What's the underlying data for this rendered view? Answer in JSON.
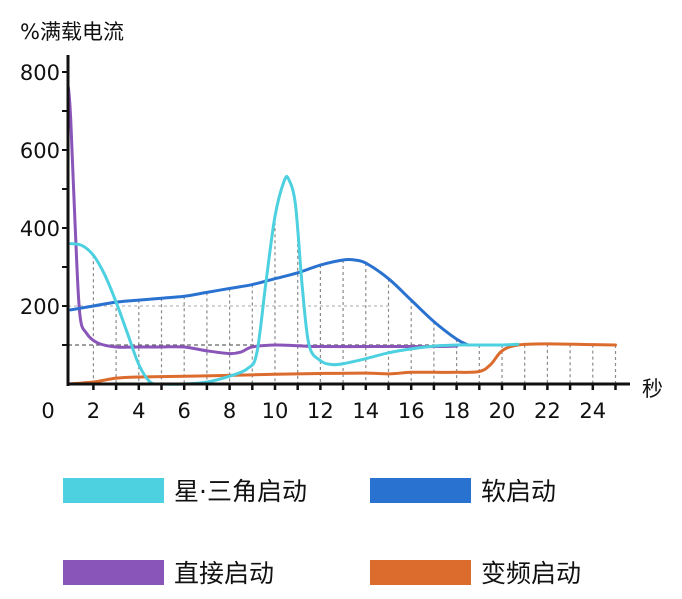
{
  "chart_data": {
    "type": "line",
    "title": "",
    "ylabel": "%满载电流",
    "xlabel": "秒",
    "xlim": [
      0,
      25
    ],
    "ylim": [
      0,
      800
    ],
    "x_ticks": [
      0,
      2,
      4,
      6,
      8,
      10,
      12,
      14,
      16,
      18,
      20,
      22,
      24
    ],
    "y_ticks": [
      200,
      400,
      600,
      800
    ],
    "grid": "dashed vertical lines at each second under curves; dashed horizontal reference at 100 and 200",
    "legend_position": "bottom",
    "series": [
      {
        "name": "星·三角启动",
        "color": "#4dd0df",
        "points": [
          [
            1,
            360
          ],
          [
            1.5,
            355
          ],
          [
            2,
            330
          ],
          [
            2.5,
            280
          ],
          [
            3,
            210
          ],
          [
            3.5,
            130
          ],
          [
            4,
            50
          ],
          [
            4.5,
            5
          ],
          [
            5,
            0
          ],
          [
            6,
            0
          ],
          [
            7,
            5
          ],
          [
            8,
            20
          ],
          [
            8.8,
            40
          ],
          [
            9.2,
            80
          ],
          [
            9.6,
            260
          ],
          [
            10,
            430
          ],
          [
            10.4,
            520
          ],
          [
            10.6,
            525
          ],
          [
            10.9,
            460
          ],
          [
            11.2,
            250
          ],
          [
            11.5,
            100
          ],
          [
            12,
            60
          ],
          [
            12.5,
            50
          ],
          [
            13,
            52
          ],
          [
            14,
            65
          ],
          [
            15,
            80
          ],
          [
            16,
            90
          ],
          [
            17,
            97
          ],
          [
            18,
            100
          ],
          [
            19,
            100
          ],
          [
            20,
            100
          ],
          [
            20.7,
            102
          ]
        ]
      },
      {
        "name": "软启动",
        "color": "#2a72d0",
        "points": [
          [
            1,
            190
          ],
          [
            2,
            200
          ],
          [
            3,
            210
          ],
          [
            4,
            215
          ],
          [
            5,
            220
          ],
          [
            6,
            225
          ],
          [
            7,
            235
          ],
          [
            8,
            245
          ],
          [
            9,
            255
          ],
          [
            10,
            270
          ],
          [
            11,
            285
          ],
          [
            12,
            305
          ],
          [
            13,
            318
          ],
          [
            13.5,
            318
          ],
          [
            14,
            310
          ],
          [
            15,
            270
          ],
          [
            16,
            215
          ],
          [
            17,
            160
          ],
          [
            18,
            115
          ],
          [
            18.5,
            100
          ]
        ]
      },
      {
        "name": "直接启动",
        "color": "#8a55b8",
        "points": [
          [
            0.9,
            760
          ],
          [
            1,
            680
          ],
          [
            1.2,
            400
          ],
          [
            1.4,
            180
          ],
          [
            1.7,
            130
          ],
          [
            2.2,
            105
          ],
          [
            3,
            95
          ],
          [
            4,
            95
          ],
          [
            5,
            95
          ],
          [
            6,
            95
          ],
          [
            7,
            85
          ],
          [
            8,
            78
          ],
          [
            8.5,
            82
          ],
          [
            9,
            95
          ],
          [
            10,
            100
          ],
          [
            11,
            98
          ],
          [
            12,
            96
          ],
          [
            14,
            96
          ],
          [
            16,
            96
          ],
          [
            17,
            96
          ],
          [
            18,
            97
          ]
        ]
      },
      {
        "name": "变频启动",
        "color": "#dc6b2e",
        "points": [
          [
            0.9,
            0
          ],
          [
            2,
            5
          ],
          [
            3,
            15
          ],
          [
            4,
            18
          ],
          [
            6,
            20
          ],
          [
            8,
            22
          ],
          [
            10,
            25
          ],
          [
            12,
            27
          ],
          [
            14,
            28
          ],
          [
            15,
            26
          ],
          [
            16,
            30
          ],
          [
            17,
            30
          ],
          [
            18,
            30
          ],
          [
            19,
            32
          ],
          [
            19.5,
            50
          ],
          [
            20,
            85
          ],
          [
            20.7,
            100
          ],
          [
            22,
            103
          ],
          [
            24,
            101
          ],
          [
            25,
            100
          ]
        ]
      }
    ]
  },
  "legend": {
    "items": [
      {
        "label": "星·三角启动",
        "color": "#4dd0df"
      },
      {
        "label": "软启动",
        "color": "#2a72d0"
      },
      {
        "label": "直接启动",
        "color": "#8a55b8"
      },
      {
        "label": "变频启动",
        "color": "#dc6b2e"
      }
    ]
  },
  "axes": {
    "y_title": "%满载电流",
    "x_unit": "秒"
  }
}
